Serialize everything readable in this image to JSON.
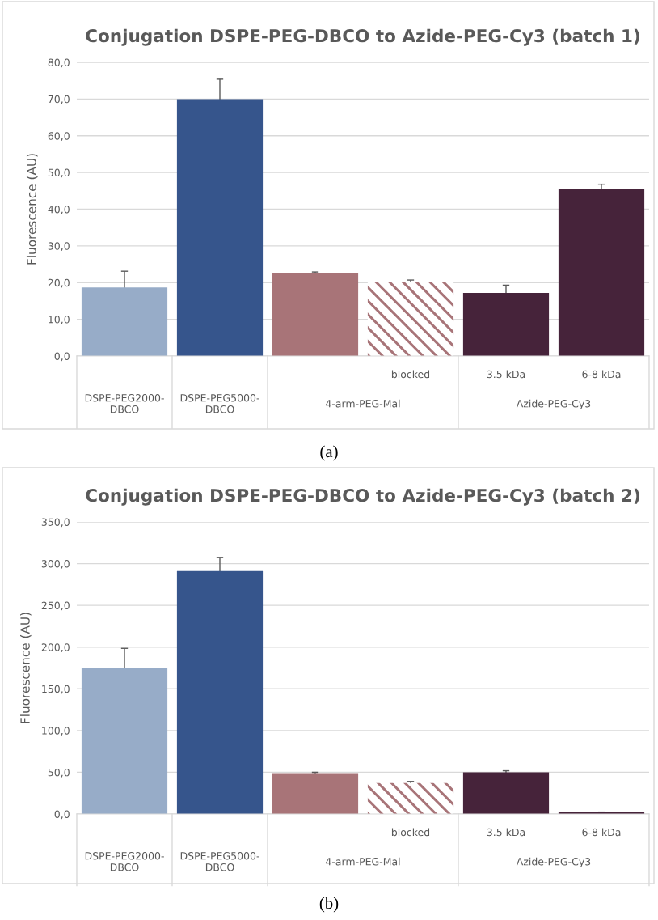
{
  "chart_data": [
    {
      "type": "bar",
      "title": "Conjugation DSPE-PEG-DBCO to Azide-PEG-Cy3 (batch 1)",
      "ylabel": "Fluorescence (AU)",
      "categories": [
        "DSPE-PEG2000-DBCO",
        "DSPE-PEG5000-DBCO",
        null,
        "blocked",
        "3.5 kDa",
        "6-8 kDa"
      ],
      "values": [
        18.7,
        70.0,
        22.5,
        20.1,
        17.2,
        45.5
      ],
      "errors": [
        4.4,
        5.4,
        0.4,
        0.6,
        2.1,
        1.3
      ],
      "colors": [
        "#97acc8",
        "#36558c",
        "#a87478",
        "#a87478",
        "#46233a",
        "#46233a"
      ],
      "ylim": [
        0,
        80
      ],
      "yticks": [
        {
          "value": 0,
          "label": "0,0"
        },
        {
          "value": 10,
          "label": "10,0"
        },
        {
          "value": 20,
          "label": "20,0"
        },
        {
          "value": 30,
          "label": "30,0"
        },
        {
          "value": 40,
          "label": "40,0"
        },
        {
          "value": 50,
          "label": "50,0"
        },
        {
          "value": 60,
          "label": "60,0"
        },
        {
          "value": 70,
          "label": "70,0"
        },
        {
          "value": 80,
          "label": "80,0"
        }
      ],
      "grid": "y",
      "annotations": [
        "4-arm-PEG-Mal",
        "Azide-PEG-Cy3",
        "(a)"
      ]
    },
    {
      "type": "bar",
      "title": "Conjugation DSPE-PEG-DBCO to Azide-PEG-Cy3 (batch 2)",
      "ylabel": "Fluorescence (AU)",
      "categories": [
        "DSPE-PEG2000-DBCO",
        "DSPE-PEG5000-DBCO",
        null,
        "blocked",
        "3.5 kDa",
        "6-8 kDa"
      ],
      "values": [
        175,
        291,
        49,
        37,
        50,
        2
      ],
      "errors": [
        23.5,
        16.5,
        1,
        2,
        1.8,
        0.3
      ],
      "colors": [
        "#97acc8",
        "#36558c",
        "#a87478",
        "#a87478",
        "#46233a",
        "#46233a"
      ],
      "ylim": [
        0,
        350
      ],
      "yticks": [
        {
          "value": 0,
          "label": "0,0"
        },
        {
          "value": 50,
          "label": "50,0"
        },
        {
          "value": 100,
          "label": "100,0"
        },
        {
          "value": 150,
          "label": "150,0"
        },
        {
          "value": 200,
          "label": "200,0"
        },
        {
          "value": 250,
          "label": "250,0"
        },
        {
          "value": 300,
          "label": "300,0"
        },
        {
          "value": 350,
          "label": "350,0"
        }
      ],
      "grid": "y",
      "annotations": [
        "4-arm-PEG-Mal",
        "Azide-PEG-Cy3",
        "(b)"
      ]
    }
  ]
}
